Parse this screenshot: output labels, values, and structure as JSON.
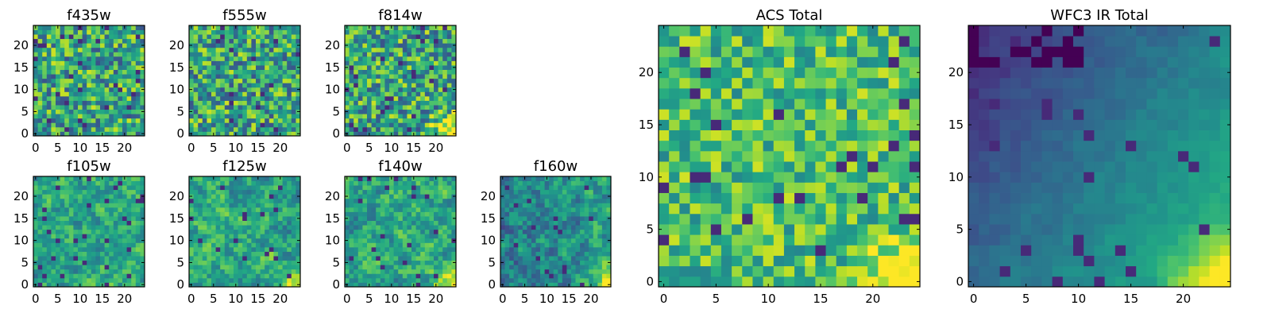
{
  "figure": {
    "colormap": "viridis",
    "colormap_stops": [
      "#440154",
      "#3b528b",
      "#21918c",
      "#5ec962",
      "#fde725"
    ],
    "axis_color": "#000000"
  },
  "chart_data": [
    {
      "type": "heatmap",
      "title": "f435w",
      "grid_size": 25,
      "xlim": [
        0,
        24
      ],
      "ylim": [
        0,
        24
      ],
      "xticks": [
        0,
        5,
        10,
        15,
        20
      ],
      "yticks": [
        0,
        5,
        10,
        15,
        20
      ],
      "seed": 11,
      "pattern": "noise"
    },
    {
      "type": "heatmap",
      "title": "f555w",
      "grid_size": 25,
      "xlim": [
        0,
        24
      ],
      "ylim": [
        0,
        24
      ],
      "xticks": [
        0,
        5,
        10,
        15,
        20
      ],
      "yticks": [
        0,
        5,
        10,
        15,
        20
      ],
      "seed": 23,
      "pattern": "noise"
    },
    {
      "type": "heatmap",
      "title": "f814w",
      "grid_size": 25,
      "xlim": [
        0,
        24
      ],
      "ylim": [
        0,
        24
      ],
      "xticks": [
        0,
        5,
        10,
        15,
        20
      ],
      "yticks": [
        0,
        5,
        10,
        15,
        20
      ],
      "seed": 37,
      "pattern": "noise_corner"
    },
    {
      "type": "heatmap",
      "title": "f105w",
      "grid_size": 25,
      "xlim": [
        0,
        24
      ],
      "ylim": [
        0,
        24
      ],
      "xticks": [
        0,
        5,
        10,
        15,
        20
      ],
      "yticks": [
        0,
        5,
        10,
        15,
        20
      ],
      "seed": 41,
      "pattern": "smooth"
    },
    {
      "type": "heatmap",
      "title": "f125w",
      "grid_size": 25,
      "xlim": [
        0,
        24
      ],
      "ylim": [
        0,
        24
      ],
      "xticks": [
        0,
        5,
        10,
        15,
        20
      ],
      "yticks": [
        0,
        5,
        10,
        15,
        20
      ],
      "seed": 53,
      "pattern": "smooth_corner"
    },
    {
      "type": "heatmap",
      "title": "f140w",
      "grid_size": 25,
      "xlim": [
        0,
        24
      ],
      "ylim": [
        0,
        24
      ],
      "xticks": [
        0,
        5,
        10,
        15,
        20
      ],
      "yticks": [
        0,
        5,
        10,
        15,
        20
      ],
      "seed": 67,
      "pattern": "smooth_corner"
    },
    {
      "type": "heatmap",
      "title": "f160w",
      "grid_size": 25,
      "xlim": [
        0,
        24
      ],
      "ylim": [
        0,
        24
      ],
      "xticks": [
        0,
        5,
        10,
        15,
        20
      ],
      "yticks": [
        0,
        5,
        10,
        15,
        20
      ],
      "seed": 79,
      "pattern": "smooth_corner_dark"
    },
    {
      "type": "heatmap",
      "title": "ACS Total",
      "grid_size": 25,
      "xlim": [
        0,
        24
      ],
      "ylim": [
        0,
        24
      ],
      "xticks": [
        0,
        5,
        10,
        15,
        20
      ],
      "yticks": [
        0,
        5,
        10,
        15,
        20
      ],
      "seed": 97,
      "pattern": "bright_noise_corner"
    },
    {
      "type": "heatmap",
      "title": "WFC3 IR Total",
      "grid_size": 25,
      "xlim": [
        0,
        24
      ],
      "ylim": [
        0,
        24
      ],
      "xticks": [
        0,
        5,
        10,
        15,
        20
      ],
      "yticks": [
        0,
        5,
        10,
        15,
        20
      ],
      "seed": 113,
      "pattern": "gradient_dark_top"
    }
  ]
}
